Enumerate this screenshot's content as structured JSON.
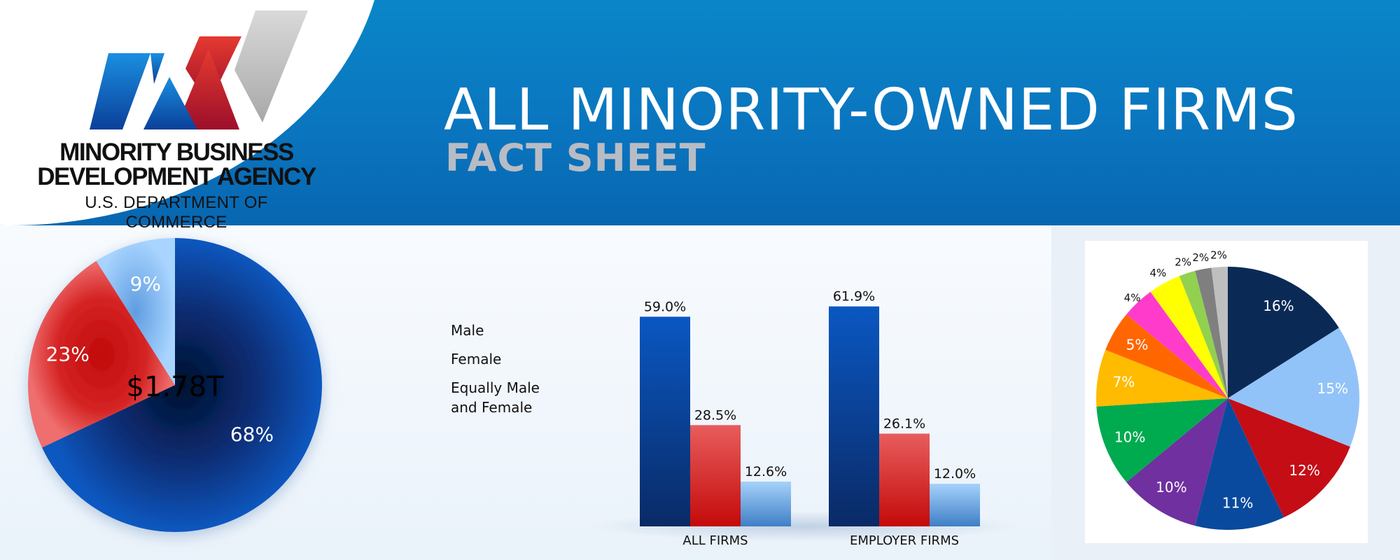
{
  "header": {
    "title": "ALL MINORITY-OWNED FIRMS",
    "subtitle": "FACT SHEET"
  },
  "logo": {
    "name_line1": "MINORITY BUSINESS",
    "name_line2": "DEVELOPMENT AGENCY",
    "department": "U.S. DEPARTMENT OF COMMERCE",
    "colors": [
      "#0b63c1",
      "#cf1f28",
      "#bdbdbd"
    ]
  },
  "legend": {
    "items": [
      {
        "label": "Male",
        "color": "#0a4fa8"
      },
      {
        "label": "Female",
        "color": "#d93a3a"
      },
      {
        "label": "Equally Male and Female",
        "color": "#8cc0f0"
      }
    ]
  },
  "chart_data": [
    {
      "type": "pie",
      "center_label": "$1.78T",
      "slices": [
        {
          "value": 68,
          "label": "68%",
          "color": "#0a3f8f"
        },
        {
          "value": 23,
          "label": "23%",
          "color": "#d01c1c"
        },
        {
          "value": 9,
          "label": "9%",
          "color": "#8dc3f5"
        }
      ]
    },
    {
      "type": "bar",
      "categories": [
        "ALL FIRMS",
        "EMPLOYER FIRMS"
      ],
      "series": [
        {
          "name": "Male",
          "values": [
            59.0,
            61.9
          ],
          "labels": [
            "59.0%",
            "61.9%"
          ],
          "color": "#0a4fa8"
        },
        {
          "name": "Female",
          "values": [
            28.5,
            26.1
          ],
          "labels": [
            "28.5%",
            "26.1%"
          ],
          "color": "#d93a3a"
        },
        {
          "name": "Equally Male and Female",
          "values": [
            12.6,
            12.0
          ],
          "labels": [
            "12.6%",
            "12.0%"
          ],
          "color": "#8cc0f0"
        }
      ],
      "ylim": [
        0,
        65
      ]
    },
    {
      "type": "pie",
      "slices": [
        {
          "value": 16,
          "label": "16%",
          "color": "#0a2a55"
        },
        {
          "value": 15,
          "label": "15%",
          "color": "#92c3f8"
        },
        {
          "value": 12,
          "label": "12%",
          "color": "#c50d16"
        },
        {
          "value": 11,
          "label": "11%",
          "color": "#0a4a9e"
        },
        {
          "value": 10,
          "label": "10%",
          "color": "#7030a0"
        },
        {
          "value": 10,
          "label": "10%",
          "color": "#00aa4f"
        },
        {
          "value": 7,
          "label": "7%",
          "color": "#ffbb00"
        },
        {
          "value": 5,
          "label": "5%",
          "color": "#ff6600"
        },
        {
          "value": 4,
          "label": "4%",
          "color": "#ff3bcb"
        },
        {
          "value": 4,
          "label": "4%",
          "color": "#ffff00"
        },
        {
          "value": 2,
          "label": "2%",
          "color": "#92d050"
        },
        {
          "value": 2,
          "label": "2%",
          "color": "#7f7f7f"
        },
        {
          "value": 2,
          "label": "2%",
          "color": "#bfbfbf"
        }
      ]
    }
  ]
}
